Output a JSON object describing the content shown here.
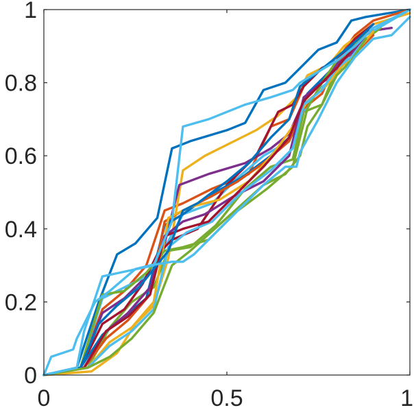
{
  "chart_data": {
    "type": "line",
    "title": "",
    "xlabel": "",
    "ylabel": "",
    "xlim": [
      0,
      1
    ],
    "ylim": [
      0,
      1
    ],
    "grid": false,
    "legend": "none",
    "xticks": [
      0,
      0.5,
      1
    ],
    "xtick_labels": [
      "0",
      "0.5",
      "1"
    ],
    "yticks": [
      0,
      0.2,
      0.4,
      0.6,
      0.8,
      1
    ],
    "ytick_labels": [
      "0",
      "0.2",
      "0.4",
      "0.6",
      "0.8",
      "1"
    ],
    "series": [
      {
        "color": "#0072BD",
        "x": [
          0,
          0.09,
          0.15,
          0.2,
          0.25,
          0.31,
          0.35,
          0.4,
          0.5,
          0.55,
          0.6,
          0.66,
          0.7,
          0.75,
          0.8,
          0.84,
          0.88,
          1
        ],
        "y": [
          0,
          0.02,
          0.2,
          0.33,
          0.36,
          0.43,
          0.62,
          0.64,
          0.67,
          0.69,
          0.78,
          0.8,
          0.84,
          0.89,
          0.91,
          0.97,
          0.98,
          1
        ]
      },
      {
        "color": "#D95319",
        "x": [
          0,
          0.1,
          0.16,
          0.22,
          0.28,
          0.33,
          0.38,
          0.46,
          0.56,
          0.62,
          0.67,
          0.71,
          0.76,
          0.8,
          0.85,
          0.9,
          1
        ],
        "y": [
          0,
          0.02,
          0.18,
          0.23,
          0.3,
          0.45,
          0.47,
          0.51,
          0.55,
          0.68,
          0.7,
          0.79,
          0.84,
          0.86,
          0.93,
          0.97,
          1
        ]
      },
      {
        "color": "#EDB120",
        "x": [
          0,
          0.13,
          0.2,
          0.25,
          0.3,
          0.34,
          0.38,
          0.44,
          0.52,
          0.58,
          0.64,
          0.69,
          0.72,
          0.78,
          0.82,
          0.86,
          0.9,
          1
        ],
        "y": [
          0,
          0.01,
          0.06,
          0.14,
          0.19,
          0.32,
          0.56,
          0.6,
          0.64,
          0.67,
          0.71,
          0.76,
          0.82,
          0.85,
          0.9,
          0.93,
          0.96,
          0.99
        ]
      },
      {
        "color": "#7E2F8E",
        "x": [
          0,
          0.1,
          0.16,
          0.22,
          0.28,
          0.33,
          0.37,
          0.45,
          0.55,
          0.62,
          0.67,
          0.71,
          0.76,
          0.8,
          0.85,
          0.88,
          0.95
        ],
        "y": [
          0,
          0.02,
          0.17,
          0.21,
          0.27,
          0.36,
          0.52,
          0.55,
          0.58,
          0.62,
          0.66,
          0.75,
          0.8,
          0.83,
          0.9,
          0.94,
          0.95
        ]
      },
      {
        "color": "#77AC30",
        "x": [
          0,
          0.12,
          0.18,
          0.24,
          0.3,
          0.34,
          0.4,
          0.47,
          0.55,
          0.62,
          0.68,
          0.71,
          0.76,
          0.8,
          0.84,
          0.88,
          0.92
        ],
        "y": [
          0,
          0.02,
          0.13,
          0.2,
          0.24,
          0.34,
          0.35,
          0.41,
          0.51,
          0.57,
          0.59,
          0.72,
          0.74,
          0.84,
          0.86,
          0.92,
          0.95
        ]
      },
      {
        "color": "#4DBEEE",
        "x": [
          0,
          0.1,
          0.16,
          0.22,
          0.28,
          0.32,
          0.38,
          0.46,
          0.53,
          0.6,
          0.67,
          0.7,
          0.75,
          0.8,
          0.84,
          0.88,
          1
        ],
        "y": [
          0,
          0.02,
          0.21,
          0.24,
          0.27,
          0.33,
          0.44,
          0.47,
          0.54,
          0.6,
          0.64,
          0.71,
          0.78,
          0.82,
          0.89,
          0.93,
          1
        ]
      },
      {
        "color": "#A2142F",
        "x": [
          0,
          0.1,
          0.16,
          0.22,
          0.27,
          0.31,
          0.35,
          0.42,
          0.5,
          0.58,
          0.64,
          0.68,
          0.71,
          0.76,
          0.8,
          0.85,
          0.9
        ],
        "y": [
          0,
          0.02,
          0.14,
          0.18,
          0.25,
          0.33,
          0.37,
          0.4,
          0.52,
          0.6,
          0.72,
          0.74,
          0.79,
          0.84,
          0.86,
          0.92,
          0.96
        ]
      },
      {
        "color": "#0072BD",
        "x": [
          0,
          0.1,
          0.16,
          0.22,
          0.28,
          0.33,
          0.38,
          0.45,
          0.54,
          0.62,
          0.68,
          0.72,
          0.76,
          0.8,
          0.84,
          0.88
        ],
        "y": [
          0,
          0.02,
          0.11,
          0.16,
          0.21,
          0.41,
          0.44,
          0.49,
          0.54,
          0.6,
          0.66,
          0.77,
          0.81,
          0.85,
          0.9,
          0.94
        ]
      },
      {
        "color": "#D95319",
        "x": [
          0,
          0.11,
          0.17,
          0.23,
          0.29,
          0.33,
          0.38,
          0.46,
          0.53,
          0.6,
          0.67,
          0.71,
          0.76,
          0.8,
          0.85,
          0.9
        ],
        "y": [
          0,
          0.02,
          0.1,
          0.15,
          0.22,
          0.42,
          0.45,
          0.49,
          0.53,
          0.58,
          0.64,
          0.73,
          0.77,
          0.86,
          0.88,
          0.93
        ]
      },
      {
        "color": "#EDB120",
        "x": [
          0,
          0.12,
          0.18,
          0.24,
          0.3,
          0.34,
          0.4,
          0.48,
          0.56,
          0.63,
          0.68,
          0.72,
          0.77,
          0.81,
          0.85,
          0.9
        ],
        "y": [
          0,
          0.02,
          0.09,
          0.13,
          0.2,
          0.43,
          0.46,
          0.48,
          0.53,
          0.61,
          0.68,
          0.75,
          0.79,
          0.84,
          0.88,
          0.94
        ]
      },
      {
        "color": "#7E2F8E",
        "x": [
          0,
          0.11,
          0.17,
          0.23,
          0.29,
          0.33,
          0.38,
          0.44,
          0.52,
          0.6,
          0.67,
          0.71,
          0.76,
          0.8,
          0.84,
          0.88
        ],
        "y": [
          0,
          0.02,
          0.12,
          0.17,
          0.24,
          0.38,
          0.42,
          0.44,
          0.49,
          0.53,
          0.6,
          0.76,
          0.8,
          0.85,
          0.88,
          0.93
        ]
      },
      {
        "color": "#77AC30",
        "x": [
          0,
          0.1,
          0.16,
          0.22,
          0.28,
          0.33,
          0.38,
          0.45,
          0.53,
          0.61,
          0.68,
          0.72,
          0.76,
          0.8,
          0.84,
          0.88
        ],
        "y": [
          0,
          0.02,
          0.22,
          0.23,
          0.28,
          0.34,
          0.35,
          0.37,
          0.45,
          0.51,
          0.57,
          0.73,
          0.8,
          0.86,
          0.89,
          0.94
        ]
      },
      {
        "color": "#4DBEEE",
        "x": [
          0,
          0.12,
          0.18,
          0.24,
          0.3,
          0.34,
          0.39,
          0.46,
          0.54,
          0.62,
          0.68,
          0.71,
          0.76,
          0.8,
          0.84,
          0.88
        ],
        "y": [
          0,
          0.02,
          0.08,
          0.12,
          0.18,
          0.35,
          0.39,
          0.42,
          0.5,
          0.56,
          0.62,
          0.74,
          0.78,
          0.84,
          0.87,
          0.92
        ]
      },
      {
        "color": "#A2142F",
        "x": [
          0,
          0.11,
          0.17,
          0.23,
          0.29,
          0.33,
          0.38,
          0.45,
          0.53,
          0.6,
          0.67,
          0.71,
          0.76,
          0.8,
          0.85,
          0.9
        ],
        "y": [
          0,
          0.02,
          0.12,
          0.16,
          0.22,
          0.38,
          0.4,
          0.42,
          0.5,
          0.57,
          0.65,
          0.75,
          0.8,
          0.84,
          0.9,
          0.95
        ]
      },
      {
        "color": "#0072BD",
        "x": [
          0,
          0.1,
          0.15,
          0.2,
          0.26,
          0.3,
          0.34,
          0.38,
          0.42,
          0.5,
          0.56,
          0.62,
          0.67,
          0.7,
          0.75,
          0.8,
          0.86,
          0.9
        ],
        "y": [
          0,
          0.02,
          0.14,
          0.19,
          0.24,
          0.29,
          0.34,
          0.45,
          0.47,
          0.53,
          0.58,
          0.65,
          0.7,
          0.79,
          0.83,
          0.87,
          0.92,
          0.96
        ]
      },
      {
        "color": "#77AC30",
        "x": [
          0,
          0.12,
          0.18,
          0.24,
          0.3,
          0.35,
          0.4,
          0.5,
          0.6,
          0.66,
          0.7,
          0.72,
          0.76,
          0.8,
          0.84,
          0.88
        ],
        "y": [
          0,
          0.02,
          0.05,
          0.1,
          0.17,
          0.3,
          0.34,
          0.43,
          0.52,
          0.55,
          0.6,
          0.68,
          0.74,
          0.82,
          0.86,
          0.92
        ]
      },
      {
        "color": "#4DBEEE",
        "x": [
          0,
          0.09,
          0.11,
          0.16,
          0.3,
          0.35,
          0.38,
          0.45,
          0.55,
          0.62,
          0.68,
          0.7,
          0.75,
          0.8,
          0.85,
          0.9,
          1
        ],
        "y": [
          0,
          0.02,
          0.12,
          0.27,
          0.3,
          0.42,
          0.68,
          0.7,
          0.74,
          0.76,
          0.78,
          0.8,
          0.83,
          0.86,
          0.9,
          0.95,
          1
        ]
      },
      {
        "color": "#4DBEEE",
        "x": [
          0,
          0.02,
          0.08,
          0.09,
          0.14,
          0.18,
          0.25,
          0.29,
          0.35,
          0.38,
          0.41,
          0.5,
          0.6,
          0.66,
          0.69,
          0.7,
          0.75,
          0.8,
          0.85,
          0.9,
          0.95,
          1
        ],
        "y": [
          0,
          0.05,
          0.07,
          0.1,
          0.2,
          0.23,
          0.29,
          0.3,
          0.31,
          0.31,
          0.33,
          0.42,
          0.52,
          0.57,
          0.57,
          0.61,
          0.7,
          0.8,
          0.87,
          0.92,
          0.93,
          0.98
        ]
      }
    ]
  }
}
